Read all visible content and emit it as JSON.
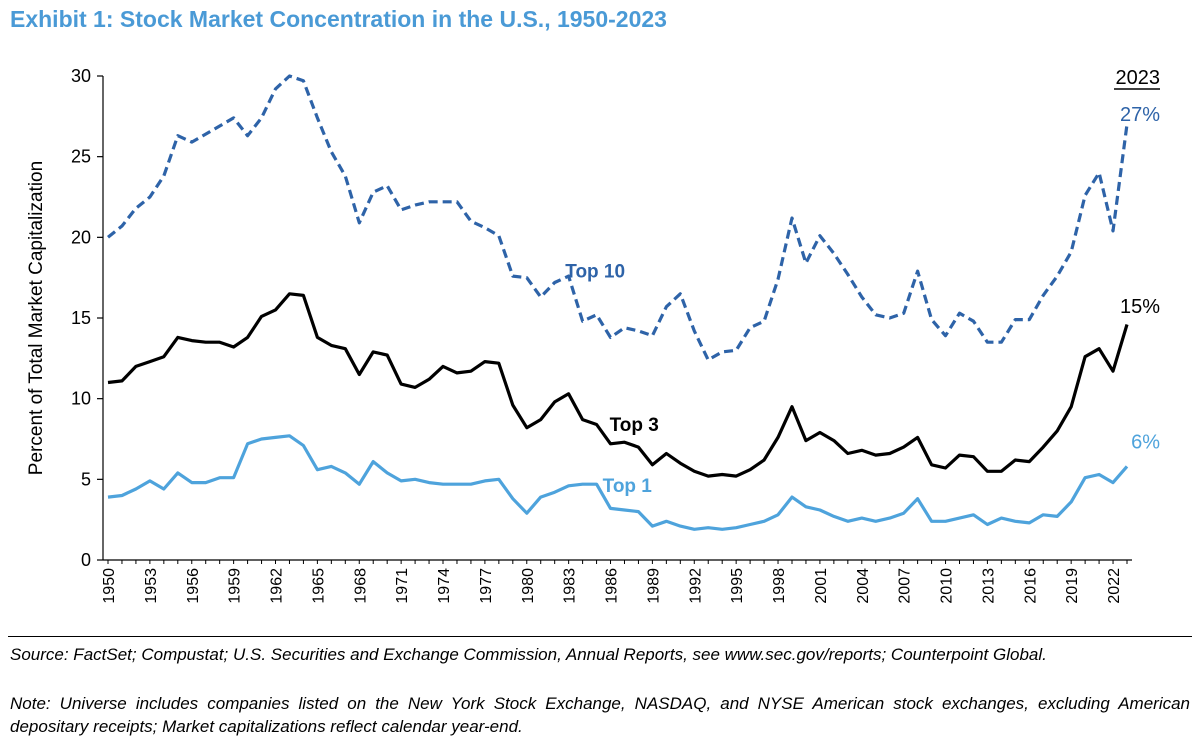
{
  "title": "Exhibit 1: Stock Market Concentration in the U.S., 1950-2023",
  "chart_data": {
    "type": "line",
    "title": "Exhibit 1: Stock Market Concentration in the U.S., 1950-2023",
    "xlabel": "",
    "ylabel": "Percent of Total Market Capitalization",
    "ylim": [
      0,
      30
    ],
    "yticks": [
      0,
      5,
      10,
      15,
      20,
      25,
      30
    ],
    "xlim": [
      1950,
      2023
    ],
    "xticks": [
      1950,
      1953,
      1956,
      1959,
      1962,
      1965,
      1968,
      1971,
      1974,
      1977,
      1980,
      1983,
      1986,
      1989,
      1992,
      1995,
      1998,
      2001,
      2004,
      2007,
      2010,
      2013,
      2016,
      2019,
      2022
    ],
    "grid": false,
    "legend": "inline labels",
    "corner_label": "2023",
    "x": [
      1950,
      1951,
      1952,
      1953,
      1954,
      1955,
      1956,
      1957,
      1958,
      1959,
      1960,
      1961,
      1962,
      1963,
      1964,
      1965,
      1966,
      1967,
      1968,
      1969,
      1970,
      1971,
      1972,
      1973,
      1974,
      1975,
      1976,
      1977,
      1978,
      1979,
      1980,
      1981,
      1982,
      1983,
      1984,
      1985,
      1986,
      1987,
      1988,
      1989,
      1990,
      1991,
      1992,
      1993,
      1994,
      1995,
      1996,
      1997,
      1998,
      1999,
      2000,
      2001,
      2002,
      2003,
      2004,
      2005,
      2006,
      2007,
      2008,
      2009,
      2010,
      2011,
      2012,
      2013,
      2014,
      2015,
      2016,
      2017,
      2018,
      2019,
      2020,
      2021,
      2022,
      2023
    ],
    "series": [
      {
        "name": "Top 10",
        "color": "#2e63a8",
        "style": "dashed",
        "end_label": "27%",
        "values": [
          20.0,
          20.7,
          21.8,
          22.5,
          23.8,
          26.3,
          25.9,
          26.4,
          26.9,
          27.4,
          26.3,
          27.4,
          29.2,
          30.0,
          29.7,
          27.4,
          25.3,
          23.8,
          20.9,
          22.8,
          23.2,
          21.7,
          22.0,
          22.2,
          22.2,
          22.2,
          21.0,
          20.6,
          20.1,
          17.6,
          17.5,
          16.3,
          17.2,
          17.6,
          14.8,
          15.2,
          13.8,
          14.4,
          14.2,
          13.9,
          15.7,
          16.5,
          14.2,
          12.4,
          12.9,
          13.0,
          14.4,
          14.8,
          17.4,
          21.2,
          18.4,
          20.1,
          19.0,
          17.7,
          16.3,
          15.2,
          15.0,
          15.3,
          17.9,
          14.9,
          13.9,
          15.3,
          14.8,
          13.5,
          13.5,
          14.9,
          14.9,
          16.4,
          17.6,
          19.1,
          22.6,
          24.0,
          20.4,
          27.0
        ]
      },
      {
        "name": "Top 3",
        "color": "#000000",
        "style": "solid",
        "end_label": "15%",
        "values": [
          11.0,
          11.1,
          12.0,
          12.3,
          12.6,
          13.8,
          13.6,
          13.5,
          13.5,
          13.2,
          13.8,
          15.1,
          15.5,
          16.5,
          16.4,
          13.8,
          13.3,
          13.1,
          11.5,
          12.9,
          12.7,
          10.9,
          10.7,
          11.2,
          12.0,
          11.6,
          11.7,
          12.3,
          12.2,
          9.6,
          8.2,
          8.7,
          9.8,
          10.3,
          8.7,
          8.4,
          7.2,
          7.3,
          7.0,
          5.9,
          6.6,
          6.0,
          5.5,
          5.2,
          5.3,
          5.2,
          5.6,
          6.2,
          7.6,
          9.5,
          7.4,
          7.9,
          7.4,
          6.6,
          6.8,
          6.5,
          6.6,
          7.0,
          7.6,
          5.9,
          5.7,
          6.5,
          6.4,
          5.5,
          5.5,
          6.2,
          6.1,
          7.0,
          8.0,
          9.5,
          12.6,
          13.1,
          11.7,
          14.6
        ]
      },
      {
        "name": "Top 1",
        "color": "#4ea3dc",
        "style": "solid",
        "end_label": "6%",
        "values": [
          3.9,
          4.0,
          4.4,
          4.9,
          4.4,
          5.4,
          4.8,
          4.8,
          5.1,
          5.1,
          7.2,
          7.5,
          7.6,
          7.7,
          7.1,
          5.6,
          5.8,
          5.4,
          4.7,
          6.1,
          5.4,
          4.9,
          5.0,
          4.8,
          4.7,
          4.7,
          4.7,
          4.9,
          5.0,
          3.8,
          2.9,
          3.9,
          4.2,
          4.6,
          4.7,
          4.7,
          3.2,
          3.1,
          3.0,
          2.1,
          2.4,
          2.1,
          1.9,
          2.0,
          1.9,
          2.0,
          2.2,
          2.4,
          2.8,
          3.9,
          3.3,
          3.1,
          2.7,
          2.4,
          2.6,
          2.4,
          2.6,
          2.9,
          3.8,
          2.4,
          2.4,
          2.6,
          2.8,
          2.2,
          2.6,
          2.4,
          2.3,
          2.8,
          2.7,
          3.6,
          5.1,
          5.3,
          4.8,
          5.8
        ]
      }
    ]
  },
  "footer": {
    "source": "Source: FactSet; Compustat; U.S. Securities and Exchange Commission, Annual Reports, see www.sec.gov/reports; Counterpoint Global.",
    "note": "Note: Universe includes companies listed on the New York Stock Exchange, NASDAQ, and NYSE American stock exchanges, excluding American depositary receipts; Market capitalizations reflect calendar year-end."
  }
}
